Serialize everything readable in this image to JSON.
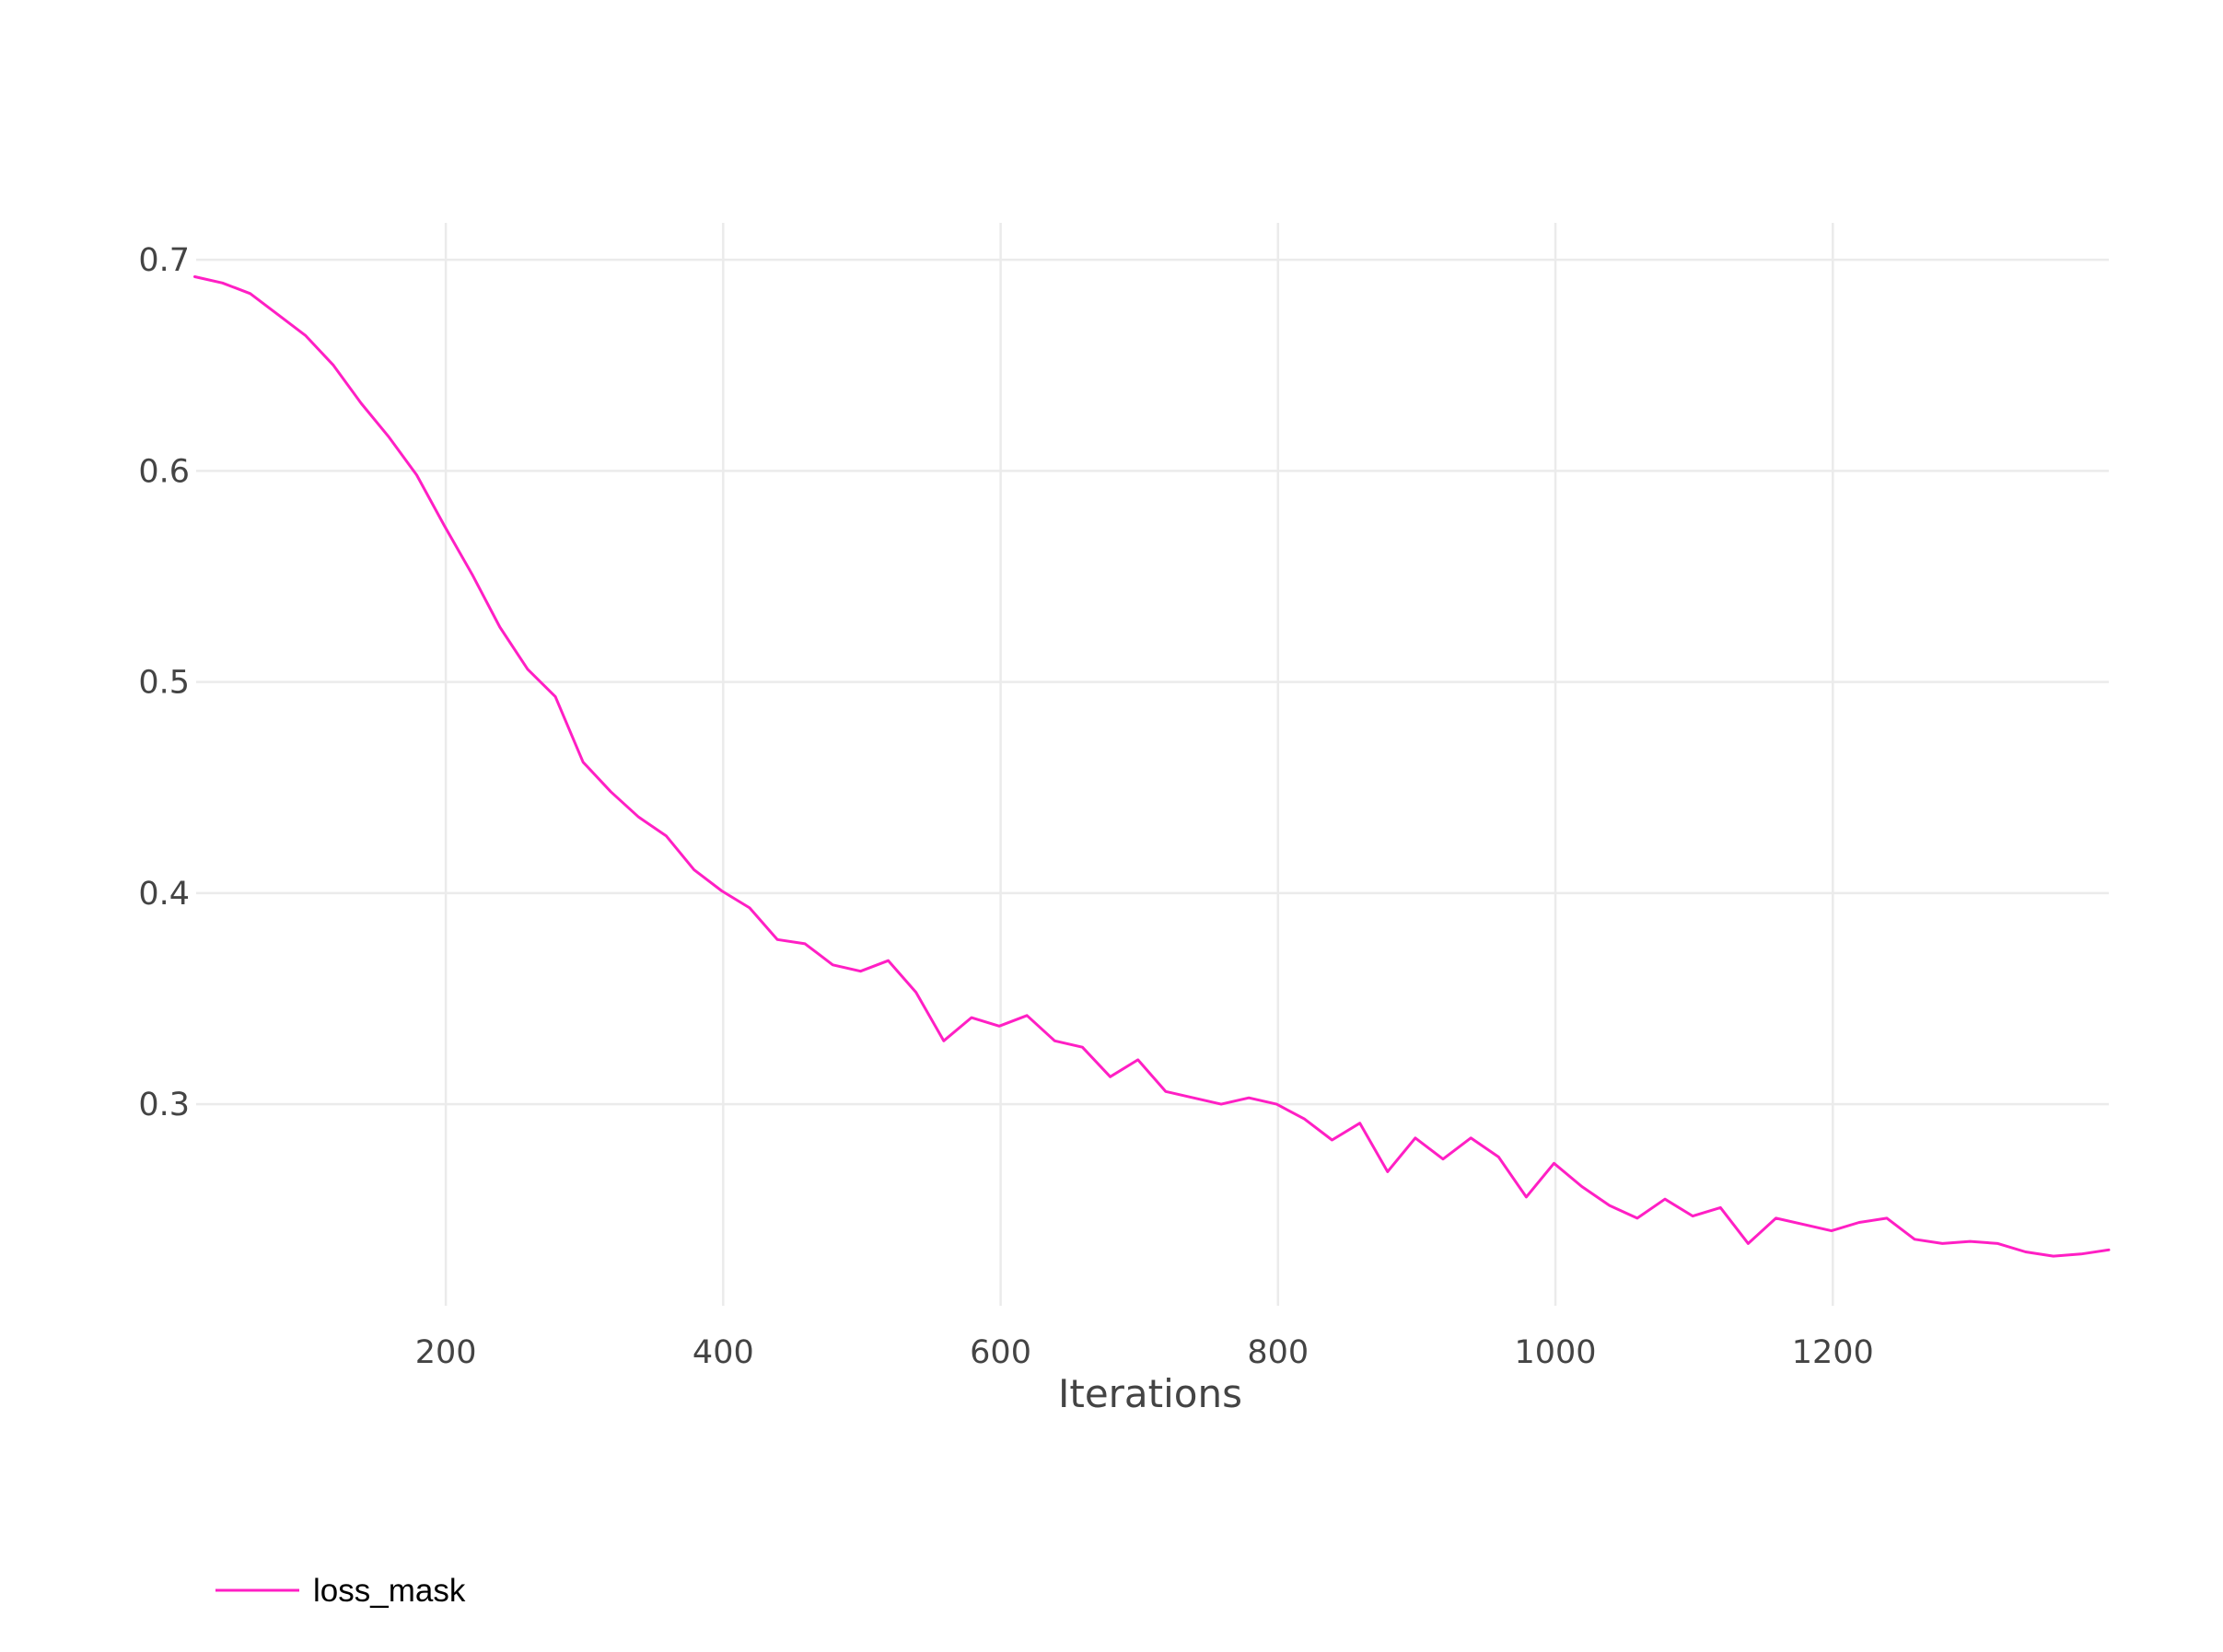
{
  "chart_data": {
    "type": "line",
    "title": "",
    "xlabel": "Iterations",
    "ylabel": "",
    "xlim": [
      20,
      1399
    ],
    "ylim": [
      0.2045,
      0.7175
    ],
    "x_ticks": [
      200,
      400,
      600,
      800,
      1000,
      1200
    ],
    "x_tick_labels": [
      "200",
      "400",
      "600",
      "800",
      "1000",
      "1200"
    ],
    "y_ticks": [
      0.3,
      0.4,
      0.5,
      0.6,
      0.7
    ],
    "y_tick_labels": [
      "0.3",
      "0.4",
      "0.5",
      "0.6",
      "0.7"
    ],
    "grid": true,
    "legend_position": "bottom-left",
    "series": [
      {
        "name": "loss_mask",
        "color": "#ff1fc4",
        "x": [
          19,
          39,
          59,
          79,
          99,
          119,
          139,
          159,
          179,
          199,
          219,
          239,
          259,
          279,
          299,
          319,
          339,
          359,
          379,
          399,
          419,
          439,
          459,
          479,
          499,
          519,
          539,
          559,
          579,
          599,
          619,
          639,
          659,
          679,
          699,
          719,
          739,
          759,
          779,
          799,
          819,
          839,
          859,
          879,
          899,
          919,
          939,
          959,
          979,
          999,
          1019,
          1039,
          1059,
          1079,
          1099,
          1119,
          1139,
          1159,
          1179,
          1199,
          1219,
          1239,
          1259,
          1279,
          1299,
          1319,
          1339,
          1359,
          1379,
          1399
        ],
        "values": [
          0.692,
          0.689,
          0.684,
          0.674,
          0.664,
          0.65,
          0.632,
          0.616,
          0.598,
          0.574,
          0.551,
          0.526,
          0.506,
          0.493,
          0.462,
          0.448,
          0.436,
          0.427,
          0.411,
          0.401,
          0.393,
          0.378,
          0.376,
          0.366,
          0.363,
          0.368,
          0.353,
          0.33,
          0.341,
          0.337,
          0.342,
          0.33,
          0.327,
          0.313,
          0.321,
          0.306,
          0.303,
          0.3,
          0.303,
          0.3,
          0.293,
          0.283,
          0.291,
          0.268,
          0.284,
          0.274,
          0.284,
          0.275,
          0.256,
          0.272,
          0.261,
          0.252,
          0.246,
          0.255,
          0.247,
          0.251,
          0.234,
          0.246,
          0.243,
          0.24,
          0.244,
          0.246,
          0.236,
          0.234,
          0.235,
          0.234,
          0.23,
          0.228,
          0.229,
          0.231
        ]
      }
    ]
  }
}
